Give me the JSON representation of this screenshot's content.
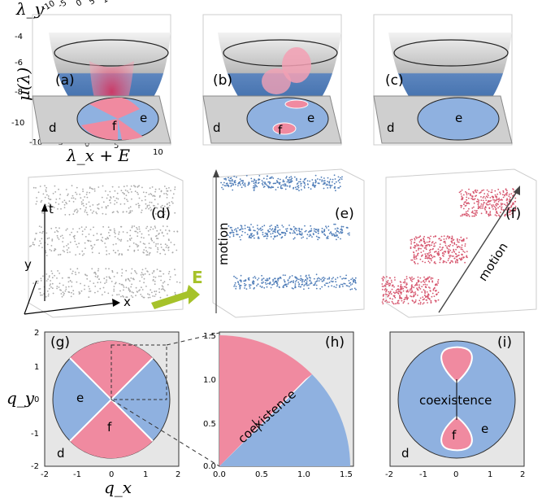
{
  "top_row": {
    "z_axis_label": "μ(λ)",
    "x_axis_label": "λ_x + E",
    "y_axis_label": "λ_y",
    "x_ticks": [
      "-10",
      "-5",
      "0",
      "5",
      "10"
    ],
    "y_ticks": [
      "-10",
      "-5",
      "0",
      "5",
      "10"
    ],
    "z_ticks": [
      "-4",
      "-6",
      "-8",
      "-10"
    ],
    "panels": [
      {
        "tag": "(a)",
        "regions": [
          "d",
          "e",
          "f"
        ]
      },
      {
        "tag": "(b)",
        "regions": [
          "d",
          "e",
          "f"
        ]
      },
      {
        "tag": "(c)",
        "regions": [
          "d",
          "e"
        ]
      }
    ]
  },
  "middle_row": {
    "panels": [
      {
        "tag": "(d)",
        "axes": [
          "t",
          "y",
          "x"
        ],
        "field_label": "E"
      },
      {
        "tag": "(e)",
        "annotation": "motion"
      },
      {
        "tag": "(f)",
        "annotation": "motion"
      }
    ]
  },
  "bottom_row": {
    "panels": [
      {
        "tag": "(g)",
        "regions": [
          "d",
          "e",
          "f"
        ],
        "x_label": "q_x",
        "y_label": "q_y",
        "x_ticks": [
          "-2",
          "-1",
          "0",
          "1",
          "2"
        ],
        "y_ticks": [
          "2",
          "1",
          "0",
          "-1",
          "-2"
        ]
      },
      {
        "tag": "(h)",
        "annotation": "coexistence",
        "x_ticks": [
          "0.0",
          "0.5",
          "1.0",
          "1.5"
        ],
        "y_ticks": [
          "1.5",
          "1.0",
          "0.5",
          "0.0"
        ]
      },
      {
        "tag": "(i)",
        "annotation": "coexistence",
        "regions": [
          "d",
          "e",
          "f"
        ],
        "x_ticks": [
          "-2",
          "-1",
          "0",
          "1",
          "2"
        ]
      }
    ]
  },
  "colors": {
    "e_blue": "#8fb1e0",
    "f_pink": "#f08aa0",
    "d_gray": "#e6e6e6",
    "bowl_blue": "#4f7db8",
    "arrow_green": "#a6c22a"
  }
}
